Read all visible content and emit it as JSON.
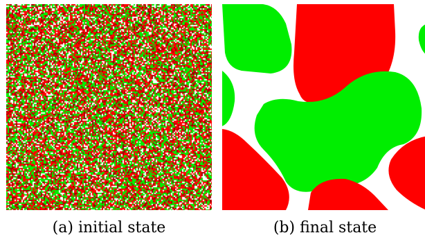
{
  "figure": {
    "colors": {
      "red": "#ff0000",
      "green": "#00ee00",
      "white": "#ffffff",
      "dark_red": "#a00000"
    },
    "panels": [
      {
        "caption": "(a) initial state"
      },
      {
        "caption": "(b) final state"
      }
    ]
  }
}
